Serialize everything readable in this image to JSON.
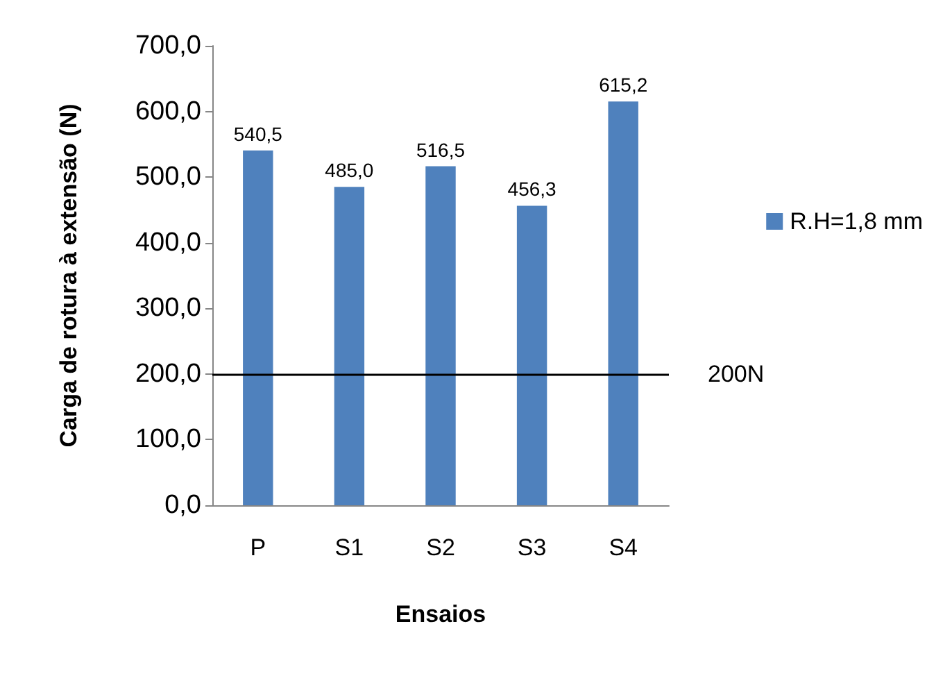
{
  "chart_data": {
    "type": "bar",
    "xlabel": "Ensaios",
    "ylabel": "Carga de rotura à extensão (N)",
    "categories": [
      "P",
      "S1",
      "S2",
      "S3",
      "S4"
    ],
    "series": [
      {
        "name": "R.H=1,8 mm",
        "color": "#4f81bd",
        "values": [
          540.5,
          485.0,
          516.5,
          456.3,
          615.2
        ],
        "value_labels": [
          "540,5",
          "485,0",
          "516,5",
          "456,3",
          "615,2"
        ]
      }
    ],
    "ylim": [
      0,
      700
    ],
    "yticks": [
      {
        "value": 0,
        "label": "0,0"
      },
      {
        "value": 100,
        "label": "100,0"
      },
      {
        "value": 200,
        "label": "200,0"
      },
      {
        "value": 300,
        "label": "300,0"
      },
      {
        "value": 400,
        "label": "400,0"
      },
      {
        "value": 500,
        "label": "500,0"
      },
      {
        "value": 600,
        "label": "600,0"
      },
      {
        "value": 700,
        "label": "700,0"
      }
    ],
    "ref_lines": [
      {
        "axis": "y",
        "value": 200,
        "label": "200N",
        "color": "#000000",
        "line_style": "solid"
      }
    ],
    "grid": false,
    "legend": "right"
  }
}
